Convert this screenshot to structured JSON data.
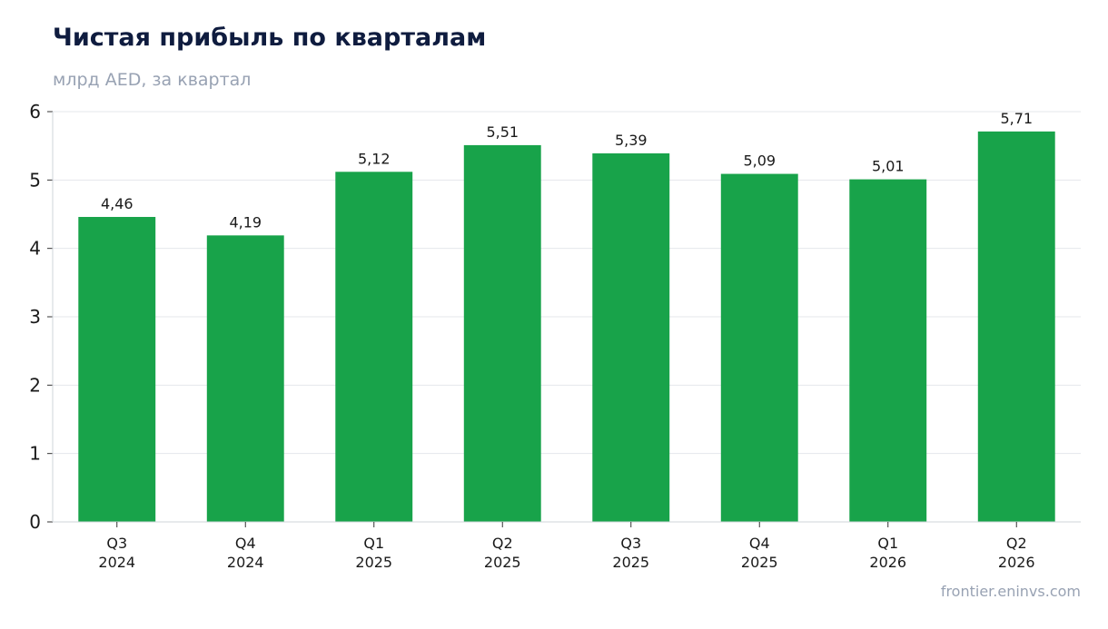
{
  "title": "Чистая прибыль по кварталам",
  "subtitle": "млрд AED, за квартал",
  "source": "frontier.eninvs.com",
  "colors": {
    "bar": "#18a34a",
    "grid": "#e5e7eb",
    "axis": "#cfd4da"
  },
  "chart_data": {
    "type": "bar",
    "title": "Чистая прибыль по кварталам",
    "subtitle": "млрд AED, за квартал",
    "categories": [
      [
        "Q3",
        "2024"
      ],
      [
        "Q4",
        "2024"
      ],
      [
        "Q1",
        "2025"
      ],
      [
        "Q2",
        "2025"
      ],
      [
        "Q3",
        "2025"
      ],
      [
        "Q4",
        "2025"
      ],
      [
        "Q1",
        "2026"
      ],
      [
        "Q2",
        "2026"
      ]
    ],
    "values": [
      4.46,
      4.19,
      5.12,
      5.51,
      5.39,
      5.09,
      5.01,
      5.71
    ],
    "data_labels": [
      "4,46",
      "4,19",
      "5,12",
      "5,51",
      "5,39",
      "5,09",
      "5,01",
      "5,71"
    ],
    "yticks": [
      "0",
      "1",
      "2",
      "3",
      "4",
      "5",
      "6"
    ],
    "ylim": [
      0,
      6
    ],
    "grid": true,
    "legend": "none"
  }
}
